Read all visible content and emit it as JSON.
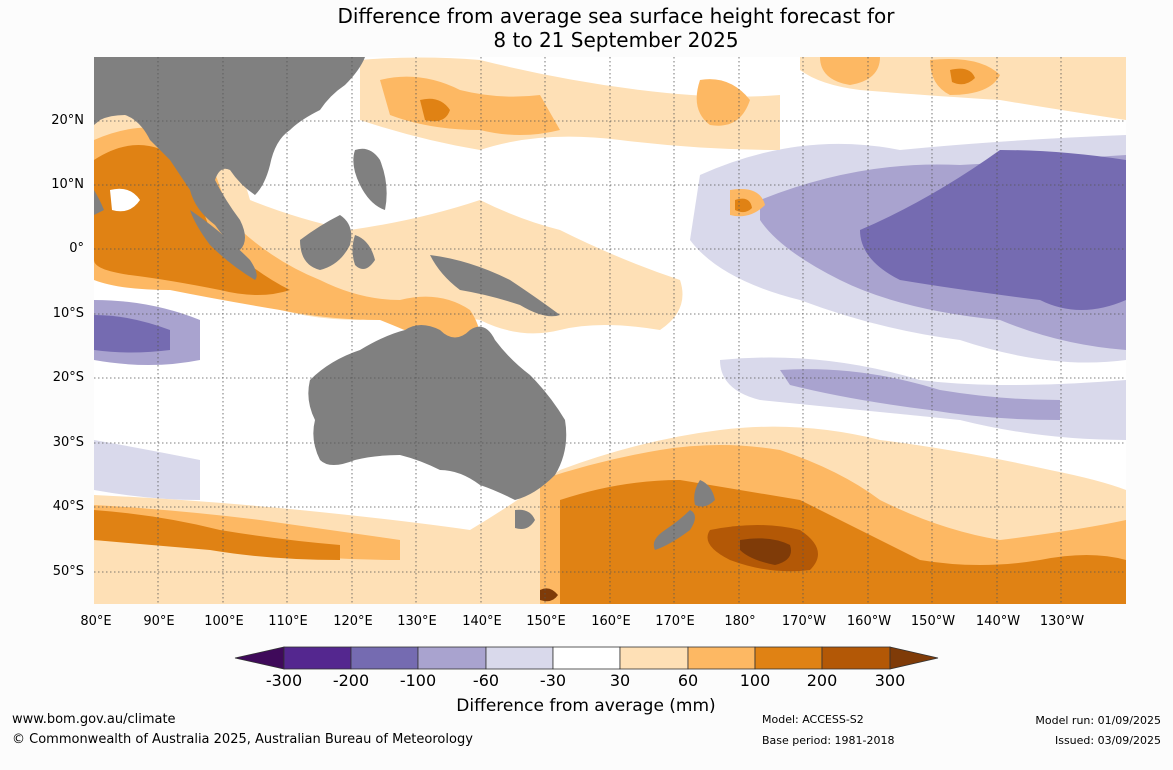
{
  "title": {
    "line1": "Difference from average sea surface height forecast for",
    "line2": "8 to 21 September 2025"
  },
  "map": {
    "region": "Indo-Pacific",
    "land_color": "#808080",
    "lat_labels": [
      "20°N",
      "10°N",
      "0°",
      "10°S",
      "20°S",
      "30°S",
      "40°S",
      "50°S"
    ],
    "lon_labels": [
      "80°E",
      "90°E",
      "100°E",
      "110°E",
      "120°E",
      "130°E",
      "140°E",
      "150°E",
      "160°E",
      "170°E",
      "180°",
      "170°W",
      "160°W",
      "150°W",
      "140°W",
      "130°W"
    ],
    "gridlines": "dotted"
  },
  "colorbar": {
    "labels": [
      "-300",
      "-200",
      "-100",
      "-60",
      "-30",
      "30",
      "60",
      "100",
      "200",
      "300"
    ],
    "colors": [
      "#3f0a5a",
      "#54278f",
      "#756bb1",
      "#a9a3cf",
      "#d9d9eb",
      "#ffffff",
      "#fee0b6",
      "#fdb863",
      "#e08214",
      "#b35806",
      "#7f3b08"
    ],
    "title": "Difference from average (mm)"
  },
  "footer": {
    "url": "www.bom.gov.au/climate",
    "copyright": "© Commonwealth of Australia 2025, Australian Bureau of Meteorology",
    "model": "Model: ACCESS-S2",
    "base_period": "Base period: 1981-2018",
    "model_run": "Model run: 01/09/2025",
    "issued": "Issued: 03/09/2025"
  }
}
